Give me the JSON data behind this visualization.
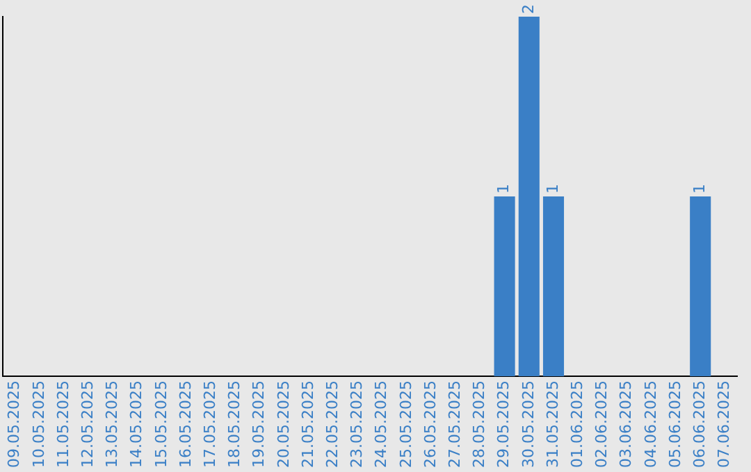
{
  "chart_data": {
    "type": "bar",
    "categories": [
      "09.05.2025",
      "10.05.2025",
      "11.05.2025",
      "12.05.2025",
      "13.05.2025",
      "14.05.2025",
      "15.05.2025",
      "16.05.2025",
      "17.05.2025",
      "18.05.2025",
      "19.05.2025",
      "20.05.2025",
      "21.05.2025",
      "22.05.2025",
      "23.05.2025",
      "24.05.2025",
      "25.05.2025",
      "26.05.2025",
      "27.05.2025",
      "28.05.2025",
      "29.05.2025",
      "30.05.2025",
      "31.05.2025",
      "01.06.2025",
      "02.06.2025",
      "03.06.2025",
      "04.06.2025",
      "05.06.2025",
      "06.06.2025",
      "07.06.2025"
    ],
    "values": [
      null,
      null,
      null,
      null,
      null,
      null,
      null,
      null,
      null,
      null,
      null,
      null,
      null,
      null,
      null,
      null,
      null,
      null,
      null,
      null,
      1,
      2,
      1,
      null,
      null,
      null,
      null,
      null,
      1,
      null
    ],
    "color": "#3a7fc6",
    "data_labels": true,
    "grid": false,
    "legend": false
  }
}
